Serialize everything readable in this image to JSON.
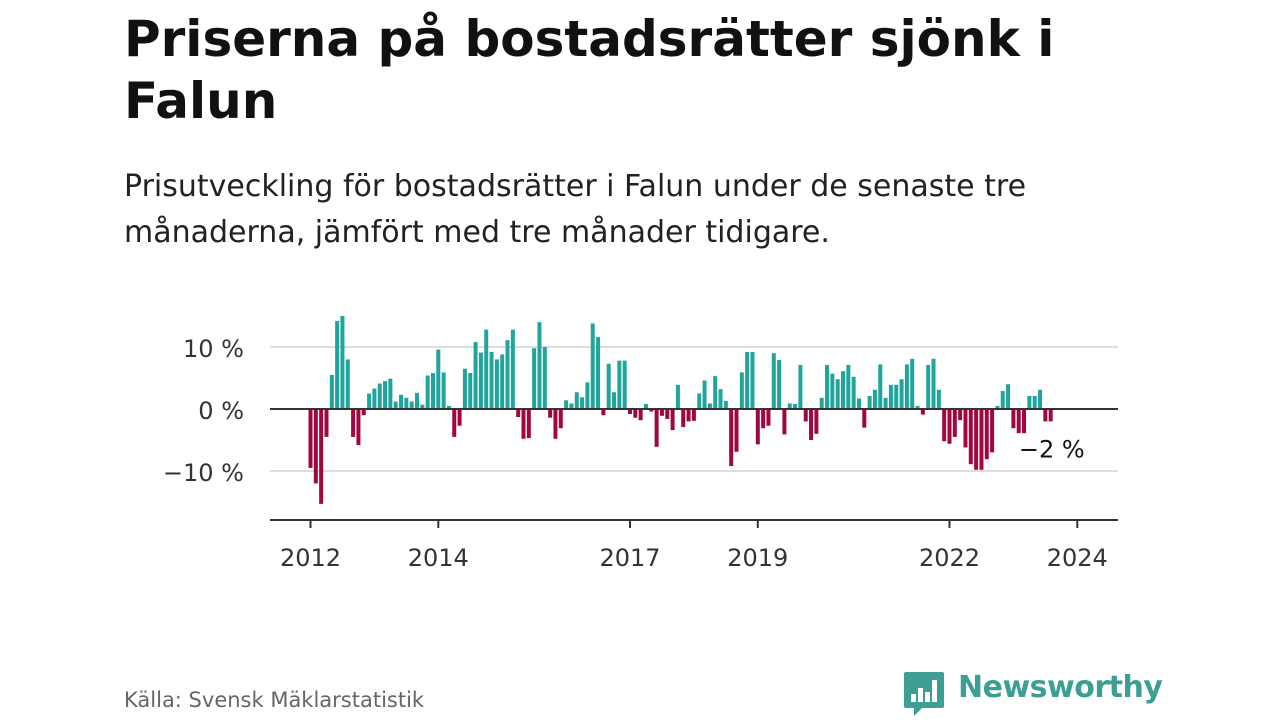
{
  "header": {
    "title": "Priserna på bostadsrätter sjönk i Falun",
    "subtitle": "Prisutveckling för bostadsrätter i Falun under de senaste tre månaderna, jämfört med tre månader tidigare."
  },
  "footer": {
    "source": "Källa: Svensk Mäklarstatistik",
    "brand": "Newsworthy"
  },
  "colors": {
    "positive": "#1fa59b",
    "negative": "#a0063f",
    "grid": "#dddddd",
    "axis": "#333333"
  },
  "chart_data": {
    "type": "bar",
    "title": "Priserna på bostadsrätter sjönk i Falun",
    "xlabel": "",
    "ylabel": "",
    "ylim": [
      -17,
      14
    ],
    "yticks": [
      -10,
      0,
      10
    ],
    "ytick_labels": [
      "−10 %",
      "0 %",
      "10 %"
    ],
    "xticks": [
      {
        "year": 2012,
        "label": "2012"
      },
      {
        "year": 2014,
        "label": "2014"
      },
      {
        "year": 2017,
        "label": "2017"
      },
      {
        "year": 2019,
        "label": "2019"
      },
      {
        "year": 2022,
        "label": "2022"
      },
      {
        "year": 2024,
        "label": "2024"
      }
    ],
    "start": {
      "year": 2012,
      "month": 1
    },
    "annotation": {
      "label": "−2 %",
      "value": -2
    },
    "values": [
      -9.5,
      -12,
      -15.3,
      -4.5,
      5.5,
      14.2,
      15,
      8,
      -4.5,
      -5.8,
      -1,
      2.5,
      3.3,
      4.1,
      4.5,
      4.9,
      1.2,
      2.3,
      1.8,
      1.2,
      2.6,
      0.7,
      5.4,
      5.8,
      9.6,
      5.9,
      0.5,
      -4.5,
      -2.7,
      6.5,
      5.8,
      10.8,
      9.1,
      12.8,
      9.2,
      8,
      8.8,
      11.1,
      12.8,
      -1.3,
      -4.8,
      -4.7,
      9.8,
      14,
      10,
      -1.4,
      -4.8,
      -3.1,
      1.4,
      0.9,
      2.7,
      1.9,
      4.3,
      13.8,
      11.6,
      -1,
      7.3,
      2.7,
      7.8,
      7.8,
      -0.8,
      -1.4,
      -1.8,
      0.8,
      -0.4,
      -6.1,
      -1.1,
      -1.6,
      -3.4,
      3.9,
      -2.9,
      -2,
      -1.9,
      2.5,
      4.6,
      0.9,
      5.3,
      3.2,
      1.3,
      -9.2,
      -6.9,
      5.9,
      9.2,
      9.2,
      -5.7,
      -3.1,
      -2.7,
      9,
      7.9,
      -4.1,
      0.9,
      0.8,
      7.1,
      -2,
      -5,
      -4,
      1.8,
      7.1,
      5.7,
      4.8,
      6.1,
      7.1,
      5.2,
      1.7,
      -3,
      2.1,
      3.1,
      7.2,
      1.8,
      3.9,
      3.9,
      4.8,
      7.2,
      8.1,
      0.5,
      -0.9,
      7.1,
      8.1,
      3.1,
      -5.2,
      -5.6,
      -4.5,
      -1.8,
      -6.2,
      -8.9,
      -9.8,
      -9.8,
      -8.1,
      -7,
      0.5,
      2.9,
      4,
      -3.1,
      -3.9,
      -3.9,
      2.1,
      2.1,
      3.1,
      -2,
      -2
    ]
  }
}
